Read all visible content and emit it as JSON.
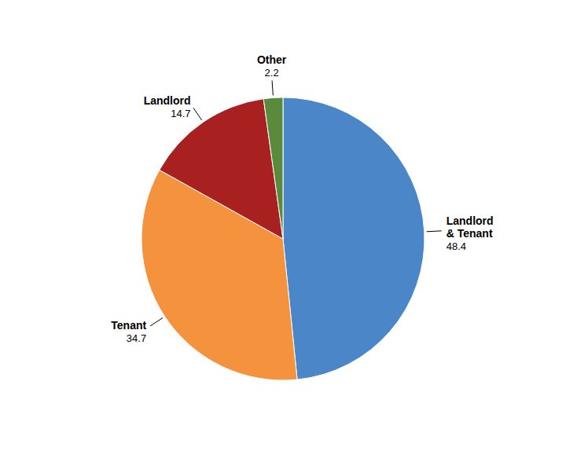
{
  "chart_data": {
    "type": "pie",
    "categories": [
      "Landlord\n& Tenant",
      "Tenant",
      "Landlord",
      "Other"
    ],
    "values": [
      48.4,
      34.7,
      14.7,
      2.2
    ],
    "colors": [
      "#4a86c8",
      "#f5923e",
      "#a82020",
      "#5a8a3c"
    ],
    "data_labels": true
  }
}
